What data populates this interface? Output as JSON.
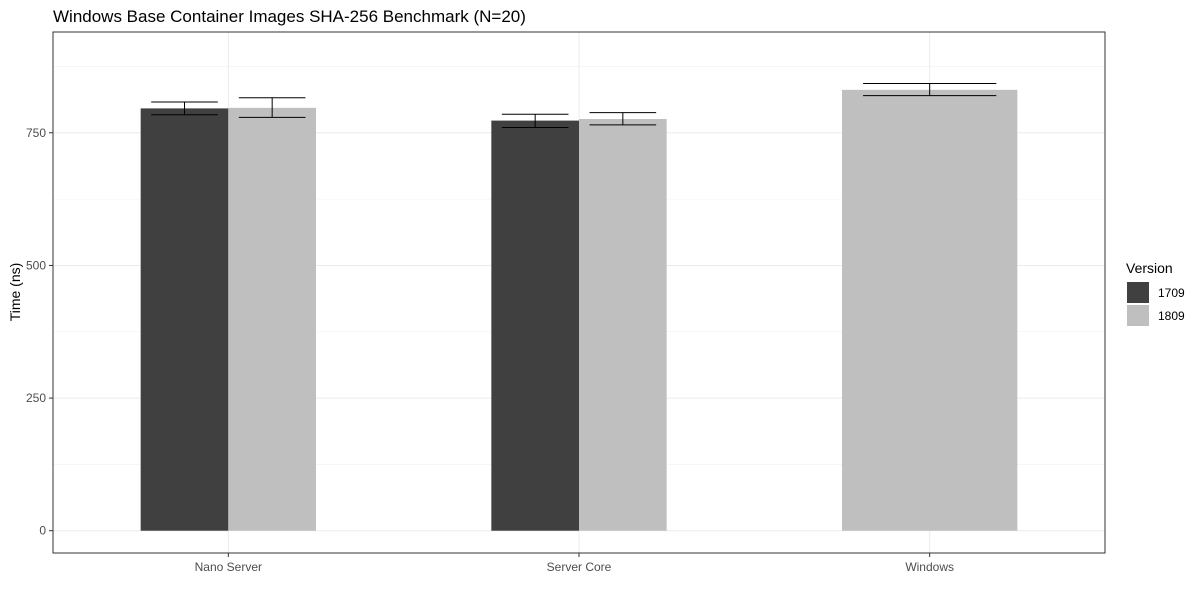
{
  "chart_data": {
    "type": "bar",
    "title": "Windows Base Container Images SHA-256 Benchmark (N=20)",
    "xlabel": "",
    "ylabel": "Time (ns)",
    "categories": [
      "Nano Server",
      "Server Core",
      "Windows"
    ],
    "y_ticks": [
      0,
      250,
      500,
      750
    ],
    "ylim": [
      -42,
      940
    ],
    "grid": true,
    "legend": {
      "title": "Version",
      "position": "right",
      "entries": [
        "1709",
        "1809"
      ]
    },
    "colors": {
      "1709": "#404040",
      "1809": "#bfbfbf"
    },
    "series": [
      {
        "name": "1709",
        "values": [
          796,
          773,
          null
        ],
        "error": [
          [
            784,
            808
          ],
          [
            760,
            785
          ],
          null
        ]
      },
      {
        "name": "1809",
        "values": [
          797,
          776,
          831
        ],
        "error": [
          [
            779,
            816
          ],
          [
            765,
            788
          ],
          [
            820,
            843
          ]
        ]
      }
    ]
  }
}
